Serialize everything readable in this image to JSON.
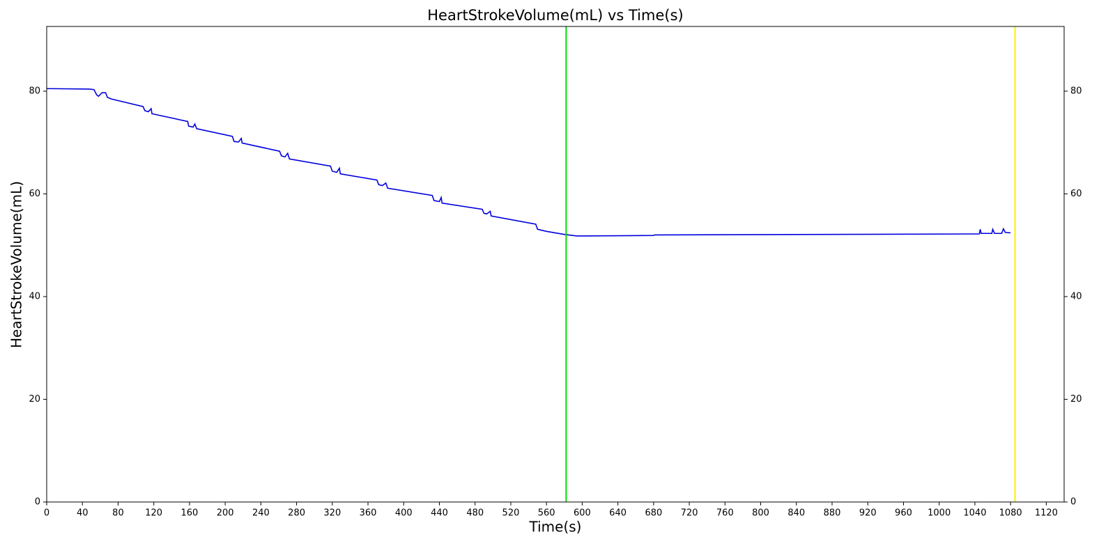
{
  "chart_data": {
    "type": "line",
    "title": "HeartStrokeVolume(mL) vs Time(s)",
    "x_label": "Time(s)",
    "y_label": "HeartStrokeVolume(mL)",
    "x": [
      0,
      48,
      53,
      56,
      58,
      62,
      66,
      68,
      72,
      108,
      110,
      114,
      117,
      118,
      158,
      159,
      164,
      166,
      168,
      208,
      210,
      215,
      218,
      219,
      261,
      263,
      267,
      270,
      272,
      318,
      320,
      325,
      328,
      329,
      370,
      372,
      376,
      380,
      382,
      432,
      434,
      440,
      442,
      443,
      488,
      490,
      493,
      497,
      498,
      548,
      550,
      560,
      580,
      594,
      680,
      681,
      1045,
      1046,
      1047,
      1059,
      1060,
      1062,
      1070,
      1072,
      1074,
      1080
    ],
    "series": [
      {
        "color": "#0000dd",
        "values": [
          80.5,
          80.4,
          80.3,
          79.3,
          79.0,
          79.7,
          79.7,
          78.8,
          78.5,
          77.0,
          76.2,
          76.0,
          76.6,
          75.6,
          74.1,
          73.2,
          73.0,
          73.6,
          72.7,
          71.2,
          70.2,
          70.1,
          70.8,
          69.9,
          68.3,
          67.4,
          67.2,
          67.9,
          66.8,
          65.4,
          64.4,
          64.2,
          65.0,
          63.9,
          62.7,
          61.8,
          61.6,
          62.1,
          61.1,
          59.7,
          58.7,
          58.5,
          59.3,
          58.2,
          57.0,
          56.2,
          56.1,
          56.6,
          55.7,
          54.1,
          53.1,
          52.7,
          52.1,
          51.8,
          51.9,
          52.0,
          52.2,
          53.1,
          52.3,
          52.3,
          53.1,
          52.3,
          52.3,
          53.2,
          52.5,
          52.4
        ]
      }
    ],
    "vlines": [
      {
        "x": 582,
        "color": "#00dd00"
      },
      {
        "x": 1085,
        "color": "#ffee00"
      }
    ],
    "xlim": [
      0,
      1140
    ],
    "ylim": [
      0,
      92.6
    ],
    "xticks": [
      0,
      40,
      80,
      120,
      160,
      200,
      240,
      280,
      320,
      360,
      400,
      440,
      480,
      520,
      560,
      600,
      640,
      680,
      720,
      760,
      800,
      840,
      880,
      920,
      960,
      1000,
      1040,
      1080,
      1120
    ],
    "yticks": [
      0,
      20,
      40,
      60,
      80
    ],
    "mirror_y_axis": true
  }
}
